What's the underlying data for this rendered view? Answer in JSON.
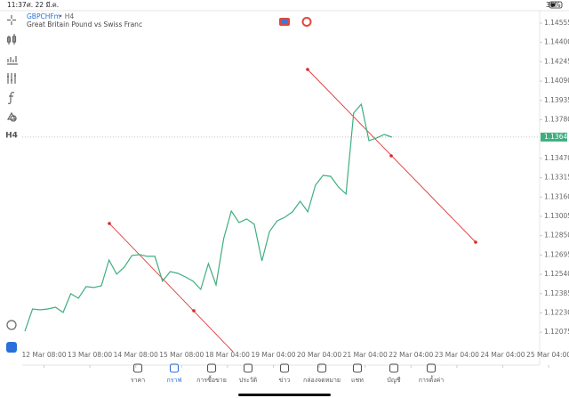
{
  "status_bar": {
    "time": "11:37",
    "date": "ศ. 22 มี.ค.",
    "battery": "36%"
  },
  "toolbar": {
    "timeframe": "H4"
  },
  "chart_data": {
    "type": "line",
    "symbol": "GBPCHFm",
    "timeframe_label": "• H4",
    "description": "Great Britain Pound vs Swiss Franc",
    "color": "#3fae7f",
    "values": [
      1.12084,
      1.12262,
      1.12255,
      1.12262,
      1.12276,
      1.12234,
      1.12384,
      1.12348,
      1.12441,
      1.12434,
      1.12448,
      1.12655,
      1.12541,
      1.12598,
      1.12691,
      1.12698,
      1.12684,
      1.12684,
      1.12484,
      1.12562,
      1.12548,
      1.12519,
      1.12484,
      1.12419,
      1.12626,
      1.12455,
      1.12826,
      1.13048,
      1.12955,
      1.12984,
      1.12941,
      1.12648,
      1.12884,
      1.12969,
      1.12998,
      1.13041,
      1.13126,
      1.13041,
      1.13255,
      1.13334,
      1.13326,
      1.13241,
      1.13184,
      1.13834,
      1.13905,
      1.13612,
      1.13634,
      1.13662,
      1.13641
    ],
    "current_price": 1.13641,
    "ylim": [
      1.11812,
      1.14655
    ],
    "yticks": [
      1.14555,
      {
        "value": 1.144,
        "label": "1.14400"
      },
      1.14245,
      {
        "value": 1.1409,
        "label": "1.14090"
      },
      1.13935,
      {
        "value": 1.1378,
        "label": "1.13780"
      },
      {
        "value": 1.1347,
        "label": "1.13470"
      },
      1.13315,
      {
        "value": 1.1316,
        "label": "1.13160"
      },
      {
        "value": 1.13005,
        "label": "1.13005"
      },
      {
        "value": 1.1285,
        "label": "1.12850"
      },
      1.12695,
      {
        "value": 1.1254,
        "label": "1.12540"
      },
      1.12385,
      {
        "value": 1.1223,
        "label": "1.12230"
      },
      1.12075
    ],
    "x_labels": [
      "12 Mar 08:00",
      "13 Mar 08:00",
      "14 Mar 08:00",
      "15 Mar 08:00",
      "18 Mar 04:00",
      "19 Mar 04:00",
      "20 Mar 04:00",
      "21 Mar 04:00",
      "22 Mar 04:00",
      "23 Mar 04:00",
      "24 Mar 04:00",
      "25 Mar 04:00"
    ]
  },
  "tabs": [
    "ราคา",
    "กราฟ",
    "การซื้อขาย",
    "ประวัติ",
    "ข่าว",
    "กล่องจดหมาย",
    "แชท",
    "บัญชี",
    "การตั้งค่า"
  ],
  "active_tab": 1
}
